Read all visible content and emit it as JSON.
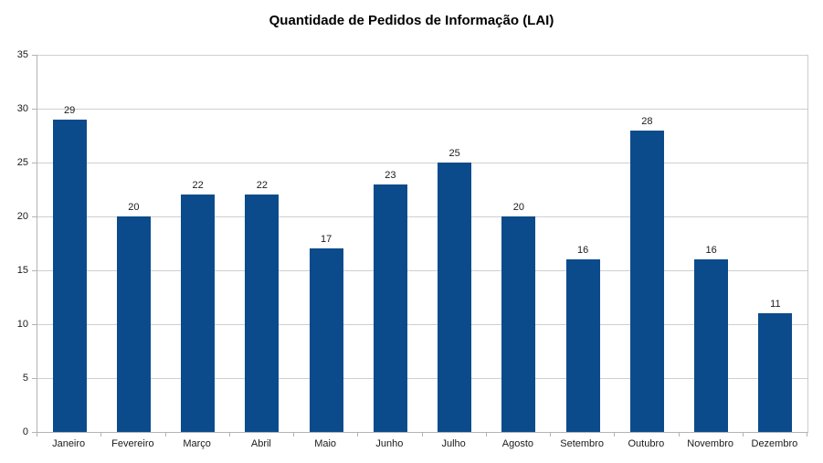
{
  "chart_data": {
    "type": "bar",
    "title": "Quantidade de Pedidos de Informação (LAI)",
    "categories": [
      "Janeiro",
      "Fevereiro",
      "Março",
      "Abril",
      "Maio",
      "Junho",
      "Julho",
      "Agosto",
      "Setembro",
      "Outubro",
      "Novembro",
      "Dezembro"
    ],
    "values": [
      29,
      20,
      22,
      22,
      17,
      23,
      25,
      20,
      16,
      28,
      16,
      11
    ],
    "xlabel": "",
    "ylabel": "",
    "ylim": [
      0,
      35
    ],
    "ytick_interval": 5,
    "ytick_labels": [
      "0",
      "5",
      "10",
      "15",
      "20",
      "25",
      "30",
      "35"
    ],
    "grid": true,
    "legend_position": "none",
    "data_labels": true
  },
  "colors": {
    "bar": "#0b4b8c",
    "gridline": "#cfcfcf",
    "axis": "#b3b3b3",
    "text": "#1a1a1a",
    "background": "#ffffff"
  }
}
